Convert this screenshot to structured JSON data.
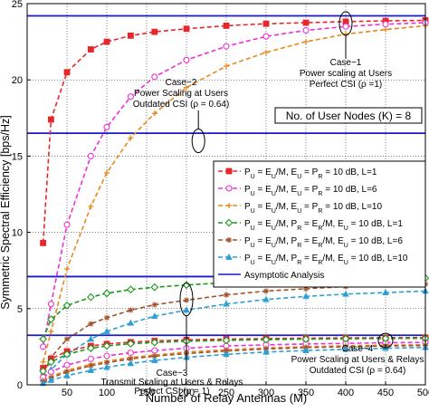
{
  "chart_data": {
    "type": "line",
    "xlabel": "Number of Relay Antennas (M)",
    "ylabel": "Symmetric Spectral Efficiency [bps/Hz]",
    "xlim": [
      0,
      500
    ],
    "ylim": [
      0,
      25
    ],
    "xticks": [
      50,
      100,
      150,
      200,
      250,
      300,
      350,
      400,
      450,
      500
    ],
    "yticks": [
      0,
      5,
      10,
      15,
      20,
      25
    ],
    "grid": true,
    "legend_placement": "center-right",
    "x": [
      20,
      30,
      50,
      80,
      100,
      130,
      160,
      200,
      250,
      300,
      350,
      400,
      450,
      500
    ],
    "series": [
      {
        "legend": [
          "P",
          "U",
          " = E",
          "U",
          "/M, E",
          "U",
          " = P",
          "R",
          " = 10 dB, L=1"
        ],
        "color": "#e8262b",
        "marker": "square-filled",
        "dash": "dashed",
        "values": [
          9.3,
          17.4,
          20.5,
          22.0,
          22.5,
          22.9,
          23.15,
          23.35,
          23.55,
          23.68,
          23.75,
          23.82,
          23.87,
          23.9
        ]
      },
      {
        "legend": [
          "P",
          "U",
          " = E",
          "U",
          "/M, E",
          "U",
          " = P",
          "R",
          " = 10 dB, L=6"
        ],
        "color": "#ee2fd9",
        "marker": "circle-open",
        "dash": "dashed",
        "values": [
          2.5,
          5.3,
          10.5,
          15.0,
          16.9,
          18.9,
          20.2,
          21.3,
          22.2,
          22.85,
          23.25,
          23.5,
          23.65,
          23.75
        ]
      },
      {
        "legend": [
          "P",
          "U",
          " = E",
          "U",
          "/M, E",
          "U",
          " = P",
          "R",
          " = 10 dB, L=10"
        ],
        "color": "#e88a1e",
        "marker": "plus",
        "dash": "dashed",
        "values": [
          1.5,
          3.5,
          7.6,
          11.7,
          13.9,
          16.2,
          17.8,
          19.5,
          20.9,
          21.8,
          22.5,
          23.0,
          23.3,
          23.55
        ]
      },
      {
        "legend": [
          "P",
          "U",
          " = E",
          "U",
          "/M, P",
          "R",
          " = E",
          "R",
          "/M, E",
          "U",
          " = 10 dB, L=1"
        ],
        "color": "#1a9a1a",
        "marker": "diamond-open",
        "dash": "dashed",
        "values": [
          3.0,
          4.3,
          5.2,
          5.75,
          6.0,
          6.25,
          6.4,
          6.55,
          6.7,
          6.8,
          6.85,
          6.9,
          6.95,
          7.0
        ]
      },
      {
        "legend": [
          "P",
          "U",
          " = E",
          "U",
          "/M, P",
          "R",
          " = E",
          "R",
          "/M, E",
          "U",
          " = 10 dB, L=6"
        ],
        "color": "#a0522d",
        "marker": "star",
        "dash": "dashed",
        "values": [
          0.7,
          1.8,
          3.0,
          4.0,
          4.4,
          4.9,
          5.25,
          5.55,
          5.9,
          6.15,
          6.3,
          6.45,
          6.55,
          6.6
        ]
      },
      {
        "legend": [
          "P",
          "U",
          " = E",
          "U",
          "/M, P",
          "R",
          " = E",
          "R",
          "/M, E",
          "U",
          " = 10 dB, L=10"
        ],
        "color": "#2a9fd6",
        "marker": "triangle-filled",
        "dash": "dashed",
        "values": [
          0.4,
          1.0,
          2.0,
          3.0,
          3.5,
          4.05,
          4.5,
          4.9,
          5.3,
          5.6,
          5.8,
          5.95,
          6.05,
          6.15
        ]
      },
      {
        "legend": [
          "Asymptotic Analysis"
        ],
        "color": "#1a1acc",
        "marker": "none",
        "dash": "solid",
        "hlines": [
          24.2,
          16.5,
          7.1,
          3.25
        ]
      }
    ],
    "case34_series": {
      "x": [
        20,
        30,
        50,
        80,
        100,
        130,
        160,
        200,
        250,
        300,
        350,
        400,
        450,
        500
      ],
      "lines": [
        {
          "color": "#e8262b",
          "marker": "square-filled",
          "values": [
            1.1,
            1.7,
            2.2,
            2.55,
            2.68,
            2.8,
            2.88,
            2.95,
            3.0,
            3.03,
            3.06,
            3.08,
            3.09,
            3.1
          ]
        },
        {
          "color": "#ee2fd9",
          "marker": "circle-open",
          "values": [
            0.5,
            0.85,
            1.3,
            1.7,
            1.9,
            2.1,
            2.25,
            2.4,
            2.55,
            2.62,
            2.68,
            2.72,
            2.76,
            2.78
          ]
        },
        {
          "color": "#e88a1e",
          "marker": "plus",
          "values": [
            0.3,
            0.55,
            0.95,
            1.35,
            1.55,
            1.8,
            1.95,
            2.15,
            2.3,
            2.42,
            2.5,
            2.56,
            2.6,
            2.63
          ]
        },
        {
          "color": "#1a9a1a",
          "marker": "diamond-open",
          "values": [
            0.9,
            1.5,
            2.0,
            2.4,
            2.55,
            2.7,
            2.78,
            2.86,
            2.92,
            2.96,
            3.0,
            3.02,
            3.04,
            3.05
          ]
        },
        {
          "color": "#a0522d",
          "marker": "star",
          "values": [
            0.2,
            0.45,
            0.85,
            1.25,
            1.45,
            1.7,
            1.88,
            2.05,
            2.22,
            2.35,
            2.44,
            2.5,
            2.55,
            2.58
          ]
        },
        {
          "color": "#2a9fd6",
          "marker": "triangle-filled",
          "values": [
            0.1,
            0.3,
            0.6,
            0.95,
            1.15,
            1.4,
            1.6,
            1.8,
            2.0,
            2.15,
            2.25,
            2.33,
            2.4,
            2.45
          ]
        }
      ]
    },
    "annotations": {
      "case1": [
        "Case−1",
        "Power scaling at Users",
        "Perfect CSI (ρ =1)"
      ],
      "case2": [
        "Case−2",
        "Power Scaling at Users",
        "Outdated CSI (ρ = 0.64)"
      ],
      "case3": [
        "Case−3",
        "Transmit Scaling at Users & Relays",
        "Perfect CSI (ρ = 1)"
      ],
      "case4": [
        "Case−4",
        "Power Scaling at Users & Relays",
        "Outdated CSI (ρ = 0.64)"
      ],
      "user_nodes": "No. of User Nodes (K) = 8"
    }
  }
}
